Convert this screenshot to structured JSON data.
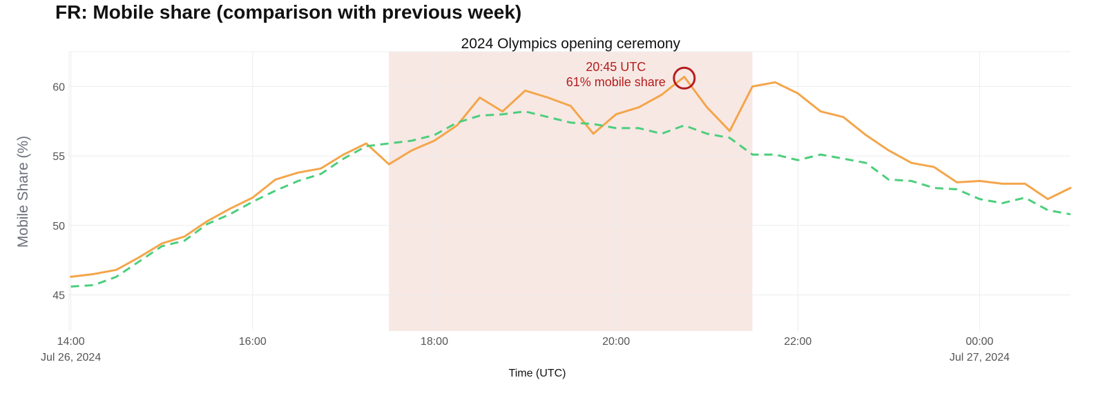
{
  "title": "FR: Mobile share (comparison with previous week)",
  "chart_data": {
    "type": "line",
    "xlabel": "Time (UTC)",
    "ylabel": "Mobile Share (%)",
    "x_ticks": [
      {
        "hour": 0,
        "label": "14:00",
        "sublabel": "Jul 26, 2024"
      },
      {
        "hour": 2,
        "label": "16:00",
        "sublabel": ""
      },
      {
        "hour": 4,
        "label": "18:00",
        "sublabel": ""
      },
      {
        "hour": 6,
        "label": "20:00",
        "sublabel": ""
      },
      {
        "hour": 8,
        "label": "22:00",
        "sublabel": ""
      },
      {
        "hour": 10,
        "label": "00:00",
        "sublabel": "Jul 27, 2024"
      }
    ],
    "y_ticks": [
      45,
      50,
      55,
      60
    ],
    "ylim": [
      42.4,
      62.5
    ],
    "xlim": [
      -0.02,
      11.0
    ],
    "grid": true,
    "highlight": {
      "label": "2024 Olympics opening ceremony",
      "start_hour": 3.5,
      "end_hour": 7.5,
      "color": "#f7e8e4"
    },
    "annotation": {
      "line1": "20:45 UTC",
      "line2": "61% mobile share",
      "hour": 6.75,
      "value": 60.6,
      "color": "#b71c1c"
    },
    "series": [
      {
        "color": "#f4a54a",
        "dash": "solid",
        "x": [
          0,
          0.25,
          0.5,
          0.75,
          1.0,
          1.25,
          1.5,
          1.75,
          2.0,
          2.25,
          2.5,
          2.75,
          3.0,
          3.25,
          3.5,
          3.75,
          4.0,
          4.25,
          4.5,
          4.75,
          5.0,
          5.25,
          5.5,
          5.75,
          6.0,
          6.25,
          6.5,
          6.75,
          7.0,
          7.25,
          7.5,
          7.75,
          8.0,
          8.25,
          8.5,
          8.75,
          9.0,
          9.25,
          9.5,
          9.75,
          10.0,
          10.25,
          10.5,
          10.75,
          11.0
        ],
        "y": [
          46.3,
          46.5,
          46.8,
          47.7,
          48.7,
          49.2,
          50.3,
          51.2,
          52.0,
          53.3,
          53.8,
          54.1,
          55.1,
          55.9,
          54.4,
          55.4,
          56.1,
          57.2,
          59.2,
          58.2,
          59.7,
          59.2,
          58.6,
          56.6,
          58.0,
          58.5,
          59.4,
          60.7,
          58.5,
          56.8,
          60.0,
          60.3,
          59.5,
          58.2,
          57.8,
          56.5,
          55.4,
          54.5,
          54.2,
          53.1,
          53.2,
          53.0,
          53.0,
          51.9,
          52.7
        ]
      },
      {
        "color": "#4cce7c",
        "dash": "dashed",
        "x": [
          0,
          0.25,
          0.5,
          0.75,
          1.0,
          1.25,
          1.5,
          1.75,
          2.0,
          2.25,
          2.5,
          2.75,
          3.0,
          3.25,
          3.5,
          3.75,
          4.0,
          4.25,
          4.5,
          4.75,
          5.0,
          5.25,
          5.5,
          5.75,
          6.0,
          6.25,
          6.5,
          6.75,
          7.0,
          7.25,
          7.5,
          7.75,
          8.0,
          8.25,
          8.5,
          8.75,
          9.0,
          9.25,
          9.5,
          9.75,
          10.0,
          10.25,
          10.5,
          10.75,
          11.0
        ],
        "y": [
          45.6,
          45.7,
          46.3,
          47.4,
          48.5,
          48.9,
          50.1,
          50.8,
          51.7,
          52.5,
          53.2,
          53.7,
          54.8,
          55.7,
          55.9,
          56.1,
          56.5,
          57.4,
          57.9,
          58.0,
          58.2,
          57.8,
          57.4,
          57.3,
          57.0,
          57.0,
          56.6,
          57.2,
          56.6,
          56.3,
          55.1,
          55.1,
          54.7,
          55.1,
          54.8,
          54.5,
          53.3,
          53.2,
          52.7,
          52.6,
          51.9,
          51.6,
          52.0,
          51.1,
          50.8
        ]
      }
    ]
  }
}
